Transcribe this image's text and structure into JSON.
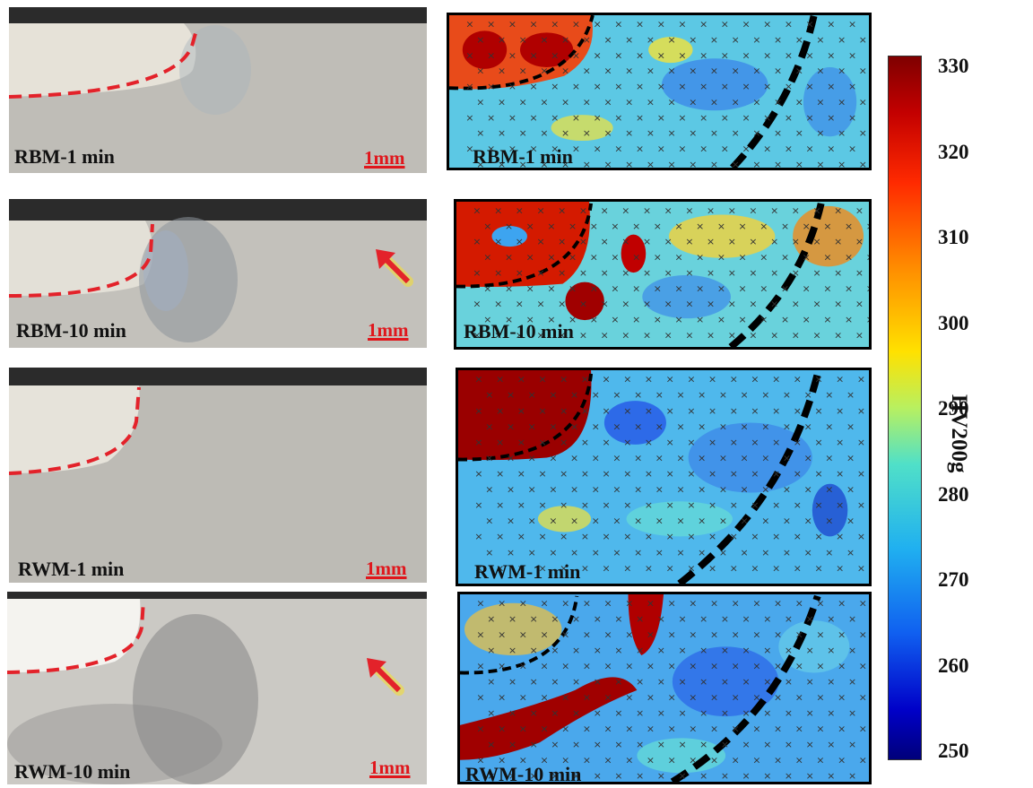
{
  "panels": [
    {
      "label": "RBM-1 min",
      "scale": "1mm",
      "arrow": false
    },
    {
      "label": "RBM-10 min",
      "scale": "1mm",
      "arrow": true
    },
    {
      "label": "RWM-1 min",
      "scale": "1mm",
      "arrow": false
    },
    {
      "label": "RWM-10 min",
      "scale": "1mm",
      "arrow": true
    }
  ],
  "maps": [
    {
      "label": "RBM-1 min"
    },
    {
      "label": "RBM-10 min"
    },
    {
      "label": "RWM-1 min"
    },
    {
      "label": "RWM-10 min"
    }
  ],
  "colorbar": {
    "title": "HV200g",
    "ticks": [
      "330",
      "320",
      "310",
      "300",
      "290",
      "280",
      "270",
      "260",
      "250"
    ],
    "min": 250,
    "max": 330
  }
}
